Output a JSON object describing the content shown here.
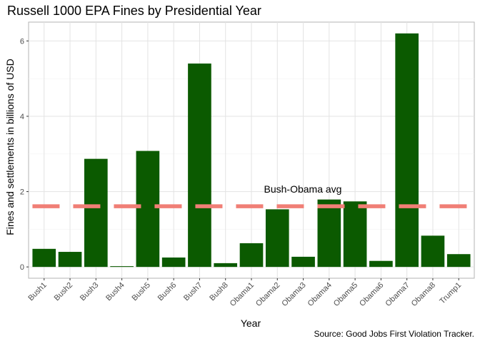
{
  "chart_data": {
    "type": "bar",
    "title": "Russell 1000 EPA Fines by Presidential Year",
    "xlabel": "Year",
    "ylabel": "Fines and settlements in billions of USD",
    "caption": "Source: Good Jobs First Violation Tracker.",
    "categories": [
      "Bush1",
      "Bush2",
      "Bush3",
      "Bush4",
      "Bush5",
      "Bush6",
      "Bush7",
      "Bush8",
      "Obama1",
      "Obama2",
      "Obama3",
      "Obama4",
      "Obama5",
      "Obama6",
      "Obama7",
      "Obama8",
      "Trump1"
    ],
    "values": [
      0.48,
      0.4,
      2.87,
      0.02,
      3.08,
      0.25,
      5.4,
      0.1,
      0.63,
      1.53,
      0.27,
      1.79,
      1.74,
      0.16,
      6.2,
      0.83,
      0.34
    ],
    "ylim": [
      -0.3,
      6.5
    ],
    "yticks": [
      0,
      2,
      4,
      6
    ],
    "bar_color": "#0b5a00",
    "reference_line": {
      "label": "Bush-Obama avg",
      "value": 1.61,
      "color": "#f07f76",
      "style": "dashed"
    },
    "grid": true,
    "legend": "none"
  }
}
